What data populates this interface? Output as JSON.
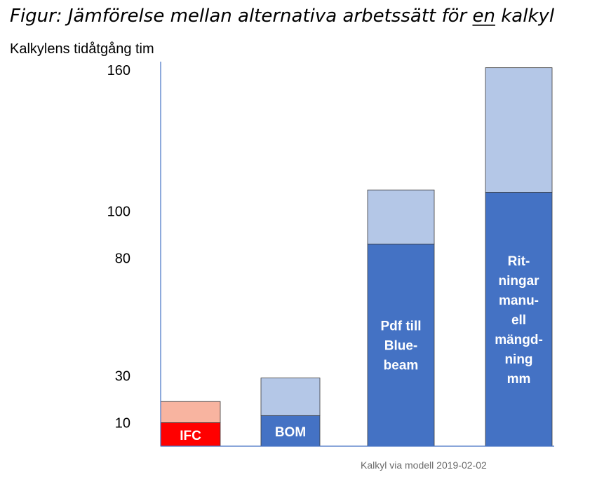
{
  "chart_data": {
    "type": "bar",
    "stacked": true,
    "title_parts": [
      {
        "text": "Figur: Jämförelse mellan alternativa arbetssätt för ",
        "underline": false
      },
      {
        "text": "en",
        "underline": true
      },
      {
        "text": " kalkyl",
        "underline": false
      }
    ],
    "ylabel": "Kalkylens tidåtgång tim",
    "yticks": [
      "10",
      "30",
      "80",
      "100",
      "160"
    ],
    "ylim": [
      0,
      160
    ],
    "categories": [
      "IFC",
      "BOM",
      "Pdf till Blue-beam",
      "Rit-ningar manu-ell mängd-ning mm"
    ],
    "bars": [
      {
        "lower": 10,
        "total": 19,
        "lower_color": "#ff0000",
        "upper_color": "#f8b4a0",
        "label_lines": [
          "IFC"
        ],
        "label_pos": "center"
      },
      {
        "lower": 13,
        "total": 29,
        "lower_color": "#4472c4",
        "upper_color": "#b4c7e7",
        "label_lines": [
          "BOM"
        ],
        "label_pos": "center"
      },
      {
        "lower": 86,
        "total": 109,
        "lower_color": "#4472c4",
        "upper_color": "#b4c7e7",
        "label_lines": [
          "Pdf till",
          "Blue-",
          "beam"
        ],
        "label_pos": "middle"
      },
      {
        "lower": 108,
        "total": 161,
        "lower_color": "#4472c4",
        "upper_color": "#b4c7e7",
        "label_lines": [
          "Rit-",
          "ningar",
          "manu-",
          "ell",
          "mängd-",
          "ning",
          "mm"
        ],
        "label_pos": "middle"
      }
    ],
    "axis_color": "#4472c4",
    "footnote": "Kalkyl via modell 2019-02-02"
  }
}
